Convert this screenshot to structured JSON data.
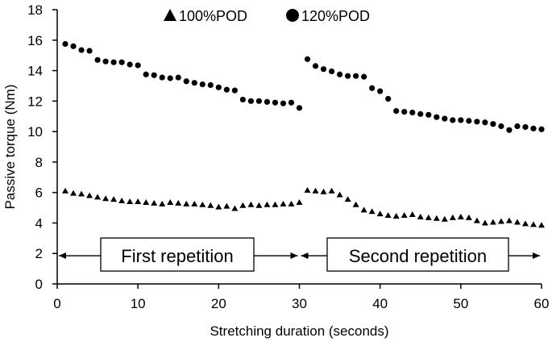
{
  "chart_data": {
    "type": "scatter",
    "xlabel": "Stretching duration (seconds)",
    "ylabel": "Passive torque (Nm)",
    "xlim": [
      0,
      60
    ],
    "ylim": [
      0,
      18
    ],
    "xticks": [
      0,
      10,
      20,
      30,
      40,
      50,
      60
    ],
    "yticks": [
      0,
      2,
      4,
      6,
      8,
      10,
      12,
      14,
      16,
      18
    ],
    "grid": false,
    "legend": "top-center",
    "series": [
      {
        "name": "100%POD",
        "marker": "triangle",
        "color": "#000000",
        "points": [
          [
            1,
            6.1
          ],
          [
            2,
            5.95
          ],
          [
            3,
            5.9
          ],
          [
            4,
            5.8
          ],
          [
            5,
            5.7
          ],
          [
            6,
            5.6
          ],
          [
            7,
            5.55
          ],
          [
            8,
            5.45
          ],
          [
            9,
            5.4
          ],
          [
            10,
            5.4
          ],
          [
            11,
            5.35
          ],
          [
            12,
            5.3
          ],
          [
            13,
            5.25
          ],
          [
            14,
            5.35
          ],
          [
            15,
            5.3
          ],
          [
            16,
            5.25
          ],
          [
            17,
            5.25
          ],
          [
            18,
            5.2
          ],
          [
            19,
            5.15
          ],
          [
            20,
            5.05
          ],
          [
            21,
            5.1
          ],
          [
            22,
            4.95
          ],
          [
            23,
            5.15
          ],
          [
            24,
            5.2
          ],
          [
            25,
            5.15
          ],
          [
            26,
            5.2
          ],
          [
            27,
            5.2
          ],
          [
            28,
            5.25
          ],
          [
            29,
            5.25
          ],
          [
            30,
            5.35
          ],
          [
            31,
            6.15
          ],
          [
            32,
            6.1
          ],
          [
            33,
            6.05
          ],
          [
            34,
            6.1
          ],
          [
            35,
            5.85
          ],
          [
            36,
            5.55
          ],
          [
            37,
            5.2
          ],
          [
            38,
            4.85
          ],
          [
            39,
            4.75
          ],
          [
            40,
            4.6
          ],
          [
            41,
            4.5
          ],
          [
            42,
            4.45
          ],
          [
            43,
            4.5
          ],
          [
            44,
            4.55
          ],
          [
            45,
            4.4
          ],
          [
            46,
            4.35
          ],
          [
            47,
            4.3
          ],
          [
            48,
            4.25
          ],
          [
            49,
            4.35
          ],
          [
            50,
            4.4
          ],
          [
            51,
            4.35
          ],
          [
            52,
            4.15
          ],
          [
            53,
            4.0
          ],
          [
            54,
            4.05
          ],
          [
            55,
            4.1
          ],
          [
            56,
            4.15
          ],
          [
            57,
            4.05
          ],
          [
            58,
            3.95
          ],
          [
            59,
            3.9
          ],
          [
            60,
            3.85
          ]
        ]
      },
      {
        "name": "120%POD",
        "marker": "circle",
        "color": "#000000",
        "points": [
          [
            1,
            15.75
          ],
          [
            2,
            15.6
          ],
          [
            3,
            15.35
          ],
          [
            4,
            15.3
          ],
          [
            5,
            14.7
          ],
          [
            6,
            14.6
          ],
          [
            7,
            14.55
          ],
          [
            8,
            14.55
          ],
          [
            9,
            14.4
          ],
          [
            10,
            14.35
          ],
          [
            11,
            13.75
          ],
          [
            12,
            13.7
          ],
          [
            13,
            13.55
          ],
          [
            14,
            13.5
          ],
          [
            15,
            13.55
          ],
          [
            16,
            13.3
          ],
          [
            17,
            13.2
          ],
          [
            18,
            13.1
          ],
          [
            19,
            13.05
          ],
          [
            20,
            12.9
          ],
          [
            21,
            12.75
          ],
          [
            22,
            12.7
          ],
          [
            23,
            12.1
          ],
          [
            24,
            12.0
          ],
          [
            25,
            12.0
          ],
          [
            26,
            11.95
          ],
          [
            27,
            11.9
          ],
          [
            28,
            11.85
          ],
          [
            29,
            11.9
          ],
          [
            30,
            11.55
          ],
          [
            31,
            14.75
          ],
          [
            32,
            14.3
          ],
          [
            33,
            14.1
          ],
          [
            34,
            13.95
          ],
          [
            35,
            13.75
          ],
          [
            36,
            13.65
          ],
          [
            37,
            13.65
          ],
          [
            38,
            13.6
          ],
          [
            39,
            12.85
          ],
          [
            40,
            12.65
          ],
          [
            41,
            12.15
          ],
          [
            42,
            11.35
          ],
          [
            43,
            11.3
          ],
          [
            44,
            11.25
          ],
          [
            45,
            11.15
          ],
          [
            46,
            11.1
          ],
          [
            47,
            10.95
          ],
          [
            48,
            10.85
          ],
          [
            49,
            10.75
          ],
          [
            50,
            10.75
          ],
          [
            51,
            10.7
          ],
          [
            52,
            10.65
          ],
          [
            53,
            10.6
          ],
          [
            54,
            10.5
          ],
          [
            55,
            10.35
          ],
          [
            56,
            10.1
          ],
          [
            57,
            10.35
          ],
          [
            58,
            10.3
          ],
          [
            59,
            10.2
          ],
          [
            60,
            10.15
          ]
        ]
      }
    ],
    "annotations": [
      {
        "label": "First repetition",
        "x_start": 0,
        "x_end": 30,
        "y": 1.85
      },
      {
        "label": "Second repetition",
        "x_start": 30,
        "x_end": 60,
        "y": 1.85
      }
    ]
  }
}
